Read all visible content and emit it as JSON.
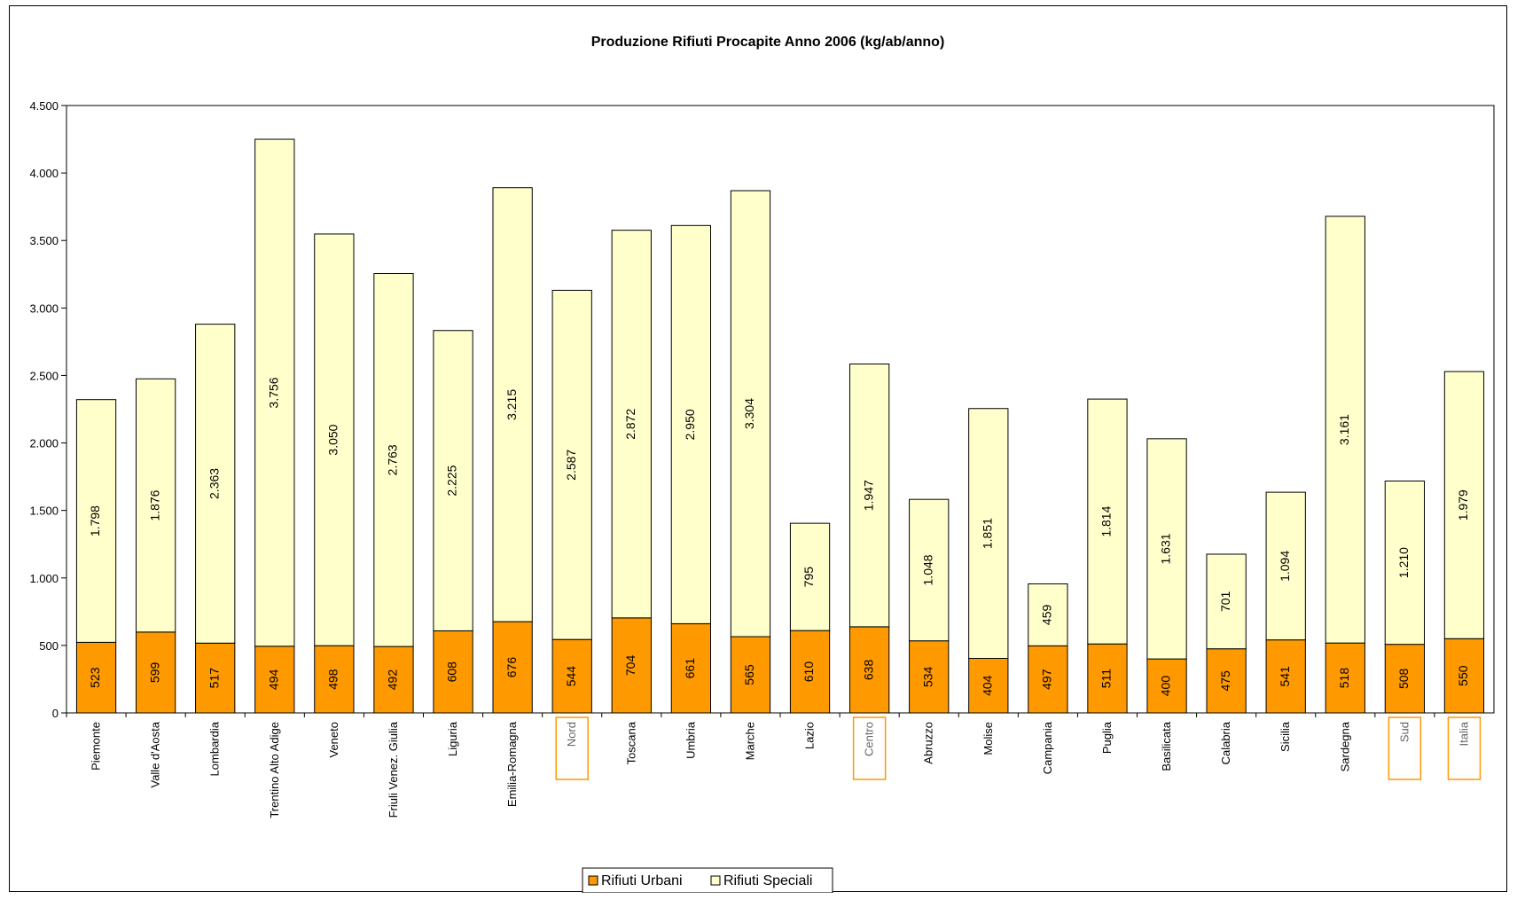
{
  "chart_data": {
    "type": "bar",
    "stacked": true,
    "title": "Produzione Rifiuti Procapite Anno 2006 (kg/ab/anno)",
    "xlabel": "",
    "ylabel": "",
    "ylim": [
      0,
      4500
    ],
    "yticks": [
      0,
      500,
      1000,
      1500,
      2000,
      2500,
      3000,
      3500,
      4000,
      4500
    ],
    "ytick_labels": [
      "0",
      "500",
      "1.000",
      "1.500",
      "2.000",
      "2.500",
      "3.000",
      "3.500",
      "4.000",
      "4.500"
    ],
    "grid": false,
    "legend_position": "bottom",
    "categories": [
      "Piemonte",
      "Valle d'Aosta",
      "Lombardia",
      "Trentino Alto Adige",
      "Veneto",
      "Friuli Venez. Giulia",
      "Liguria",
      "Emilia-Romagna",
      "Nord",
      "Toscana",
      "Umbria",
      "Marche",
      "Lazio",
      "Centro",
      "Abruzzo",
      "Molise",
      "Campania",
      "Puglia",
      "Basilicata",
      "Calabria",
      "Sicilia",
      "Sardegna",
      "Sud",
      "Italia"
    ],
    "highlighted_categories": [
      "Nord",
      "Centro",
      "Sud",
      "Italia"
    ],
    "series": [
      {
        "name": "Rifiuti Urbani",
        "color": "#FF9900",
        "values": [
          523,
          599,
          517,
          494,
          498,
          492,
          608,
          676,
          544,
          704,
          661,
          565,
          610,
          638,
          534,
          404,
          497,
          511,
          400,
          475,
          541,
          518,
          508,
          550
        ],
        "labels": [
          "523",
          "599",
          "517",
          "494",
          "498",
          "492",
          "608",
          "676",
          "544",
          "704",
          "661",
          "565",
          "610",
          "638",
          "534",
          "404",
          "497",
          "511",
          "400",
          "475",
          "541",
          "518",
          "508",
          "550"
        ]
      },
      {
        "name": "Rifiuti Speciali",
        "color": "#FFFFCC",
        "values": [
          1798,
          1876,
          2363,
          3756,
          3050,
          2763,
          2225,
          3215,
          2587,
          2872,
          2950,
          3304,
          795,
          1947,
          1048,
          1851,
          459,
          1814,
          1631,
          701,
          1094,
          3161,
          1210,
          1979
        ],
        "labels": [
          "1.798",
          "1.876",
          "2.363",
          "3.756",
          "3.050",
          "2.763",
          "2.225",
          "3.215",
          "2.587",
          "2.872",
          "2.950",
          "3.304",
          "795",
          "1.947",
          "1.048",
          "1.851",
          "459",
          "1.814",
          "1.631",
          "701",
          "1.094",
          "3.161",
          "1.210",
          "1.979"
        ]
      }
    ],
    "colors": {
      "highlight_border": "#FF9900",
      "axis": "#000000",
      "bar_border": "#000000"
    }
  }
}
